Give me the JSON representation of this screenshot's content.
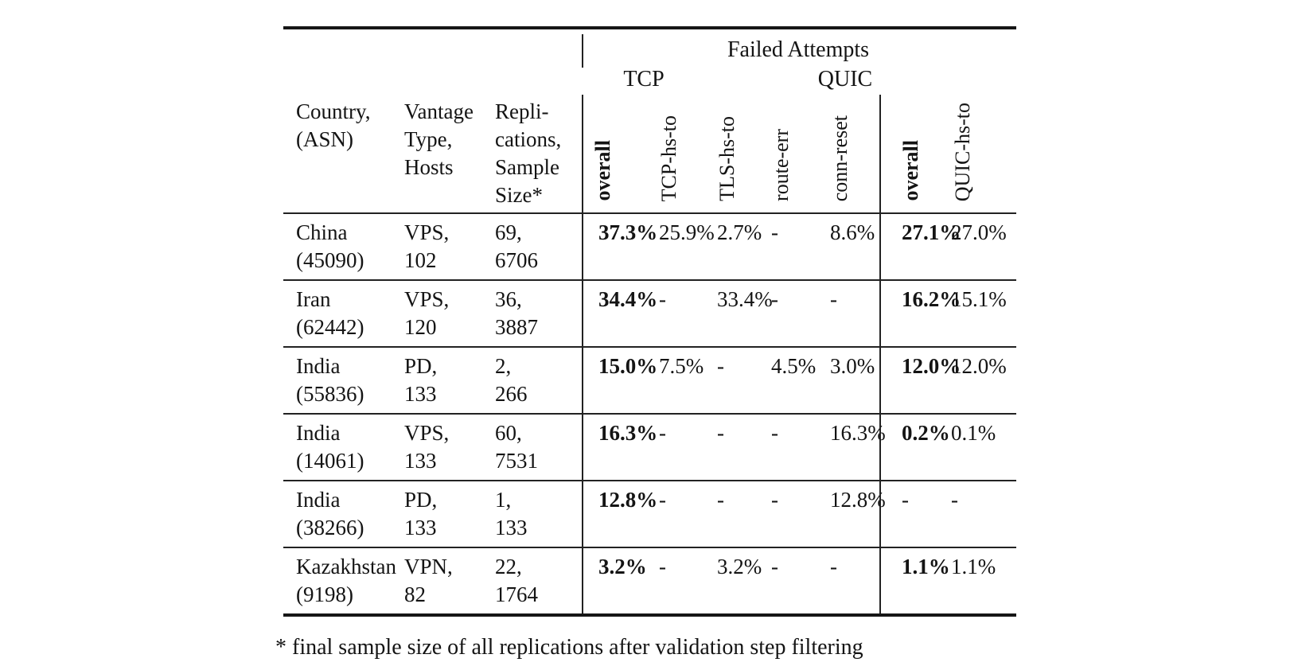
{
  "table": {
    "failed_attempts_label": "Failed Attempts",
    "tcp_group_label": "TCP",
    "quic_group_label": "QUIC",
    "col_country_header": "Country,\n(ASN)",
    "col_vantage_header": "Vantage\nType,\nHosts",
    "col_replications_header": "Repli-\ncations,\nSample\nSize*",
    "rotated_headers": {
      "tcp_overall": "overall",
      "tcp_hs_to": "TCP-hs-to",
      "tls_hs_to": "TLS-hs-to",
      "route_err": "route-err",
      "conn_reset": "conn-reset",
      "quic_overall": "overall",
      "quic_hs_to": "QUIC-hs-to"
    },
    "rows": [
      {
        "country": "China",
        "asn": "(45090)",
        "vantage_type": "VPS,",
        "hosts": "102",
        "replications": "69,",
        "sample_size": "6706",
        "tcp_overall": "37.3%",
        "tcp_hs_to": "25.9%",
        "tls_hs_to": "2.7%",
        "route_err": "-",
        "conn_reset": "8.6%",
        "quic_overall": "27.1%",
        "quic_hs_to": "27.0%"
      },
      {
        "country": "Iran",
        "asn": "(62442)",
        "vantage_type": "VPS,",
        "hosts": "120",
        "replications": "36,",
        "sample_size": "3887",
        "tcp_overall": "34.4%",
        "tcp_hs_to": "-",
        "tls_hs_to": "33.4%",
        "route_err": "-",
        "conn_reset": "-",
        "quic_overall": "16.2%",
        "quic_hs_to": "15.1%"
      },
      {
        "country": "India",
        "asn": "(55836)",
        "vantage_type": "PD,",
        "hosts": "133",
        "replications": "2,",
        "sample_size": "266",
        "tcp_overall": "15.0%",
        "tcp_hs_to": "7.5%",
        "tls_hs_to": "-",
        "route_err": "4.5%",
        "conn_reset": "3.0%",
        "quic_overall": "12.0%",
        "quic_hs_to": "12.0%"
      },
      {
        "country": "India",
        "asn": "(14061)",
        "vantage_type": "VPS,",
        "hosts": "133",
        "replications": "60,",
        "sample_size": "7531",
        "tcp_overall": "16.3%",
        "tcp_hs_to": "-",
        "tls_hs_to": "-",
        "route_err": "-",
        "conn_reset": "16.3%",
        "quic_overall": "0.2%",
        "quic_hs_to": "0.1%"
      },
      {
        "country": "India",
        "asn": "(38266)",
        "vantage_type": "PD,",
        "hosts": "133",
        "replications": "1,",
        "sample_size": "133",
        "tcp_overall": "12.8%",
        "tcp_hs_to": "-",
        "tls_hs_to": "-",
        "route_err": "-",
        "conn_reset": "12.8%",
        "quic_overall": "-",
        "quic_hs_to": "-"
      },
      {
        "country": "Kazakhstan",
        "asn": "(9198)",
        "vantage_type": "VPN,",
        "hosts": "82",
        "replications": "22,",
        "sample_size": "1764",
        "tcp_overall": "3.2%",
        "tcp_hs_to": "-",
        "tls_hs_to": "3.2%",
        "route_err": "-",
        "conn_reset": "-",
        "quic_overall": "1.1%",
        "quic_hs_to": "1.1%"
      }
    ],
    "footnote": "* final sample size of all replications after validation step filtering"
  }
}
